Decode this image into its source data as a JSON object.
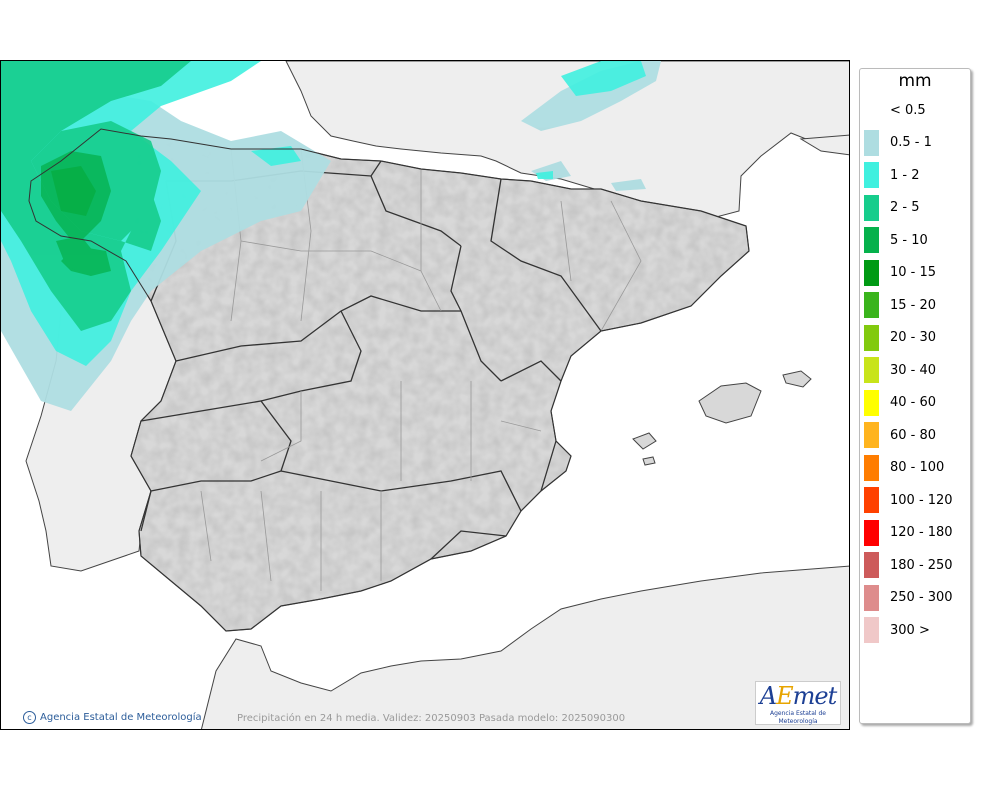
{
  "legend": {
    "title": "mm",
    "items": [
      {
        "label": "< 0.5",
        "color": "#ffffff"
      },
      {
        "label": "0.5 - 1",
        "color": "#aedde1"
      },
      {
        "label": "1 - 2",
        "color": "#3ff0df"
      },
      {
        "label": "2 - 5",
        "color": "#16cd8c"
      },
      {
        "label": "5 - 10",
        "color": "#05b14c"
      },
      {
        "label": "10 - 15",
        "color": "#009a14"
      },
      {
        "label": "15 - 20",
        "color": "#3ab41c"
      },
      {
        "label": "20 - 30",
        "color": "#82ca0e"
      },
      {
        "label": "30 - 40",
        "color": "#c8e41a"
      },
      {
        "label": "40 - 60",
        "color": "#ffff00"
      },
      {
        "label": "60 - 80",
        "color": "#ffb41e"
      },
      {
        "label": "80 - 100",
        "color": "#ff7d00"
      },
      {
        "label": "100 - 120",
        "color": "#ff4100"
      },
      {
        "label": "120 - 180",
        "color": "#ff0000"
      },
      {
        "label": "180 - 250",
        "color": "#cd5a5a"
      },
      {
        "label": "250 - 300",
        "color": "#de8c8c"
      },
      {
        "label": "300 >",
        "color": "#f0c8c8"
      }
    ]
  },
  "map": {
    "credit": "Agencia Estatal de Meteorología",
    "caption": "Precipitación en 24 h media. Validez: 20250903 Pasada modelo: 2025090300",
    "logo_text": "AEMet",
    "logo_subtext": "Agencia Estatal de Meteorología",
    "colors": {
      "sea": "#ffffff",
      "land_other": "#eeeeee",
      "land_spain": "#d8d8d8",
      "border": "#555555"
    }
  }
}
